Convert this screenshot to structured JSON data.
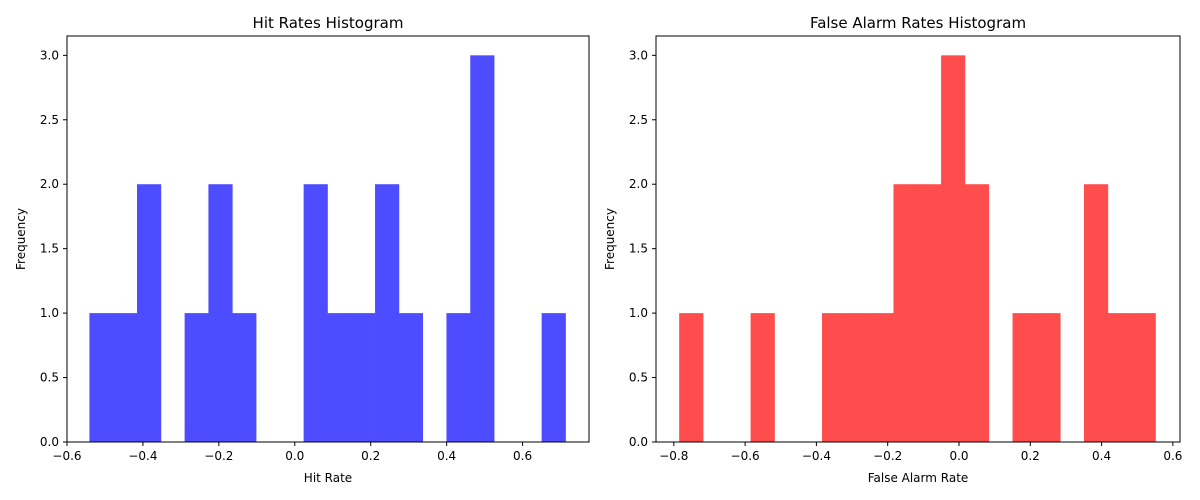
{
  "chart_data": [
    {
      "type": "bar",
      "title": "Hit Rates Histogram",
      "xlabel": "Hit Rate",
      "ylabel": "Frequency",
      "color": "#4d4dff",
      "xlim": [
        -0.6,
        0.775
      ],
      "ylim": [
        0,
        3.15
      ],
      "xticks": [
        -0.6,
        -0.4,
        -0.2,
        0.0,
        0.2,
        0.4,
        0.6
      ],
      "xtick_labels": [
        "−0.6",
        "−0.4",
        "−0.2",
        "0.0",
        "0.2",
        "0.4",
        "0.6"
      ],
      "yticks": [
        0,
        0.5,
        1.0,
        1.5,
        2.0,
        2.5,
        3.0
      ],
      "ytick_labels": [
        "0.0",
        "0.5",
        "1.0",
        "1.5",
        "2.0",
        "2.5",
        "3.0"
      ],
      "bin_start": -0.541,
      "bin_width": 0.0627,
      "counts": [
        1,
        1,
        2,
        0,
        1,
        2,
        1,
        0,
        0,
        2,
        1,
        1,
        2,
        1,
        0,
        1,
        3,
        0,
        0,
        1
      ]
    },
    {
      "type": "bar",
      "title": "False Alarm Rates Histogram",
      "xlabel": "False Alarm Rate",
      "ylabel": "Frequency",
      "color": "#ff4d4d",
      "xlim": [
        -0.85,
        0.62
      ],
      "ylim": [
        0,
        3.15
      ],
      "xticks": [
        -0.8,
        -0.6,
        -0.4,
        -0.2,
        0.0,
        0.2,
        0.4,
        0.6
      ],
      "xtick_labels": [
        "−0.8",
        "−0.6",
        "−0.4",
        "−0.2",
        "0.0",
        "0.2",
        "0.4",
        "0.6"
      ],
      "yticks": [
        0,
        0.5,
        1.0,
        1.5,
        2.0,
        2.5,
        3.0
      ],
      "ytick_labels": [
        "0.0",
        "0.5",
        "1.0",
        "1.5",
        "2.0",
        "2.5",
        "3.0"
      ],
      "bin_start": -0.785,
      "bin_width": 0.0668,
      "counts": [
        1,
        0,
        0,
        1,
        0,
        0,
        1,
        1,
        1,
        2,
        2,
        3,
        2,
        0,
        1,
        1,
        0,
        2,
        1,
        1
      ]
    }
  ]
}
